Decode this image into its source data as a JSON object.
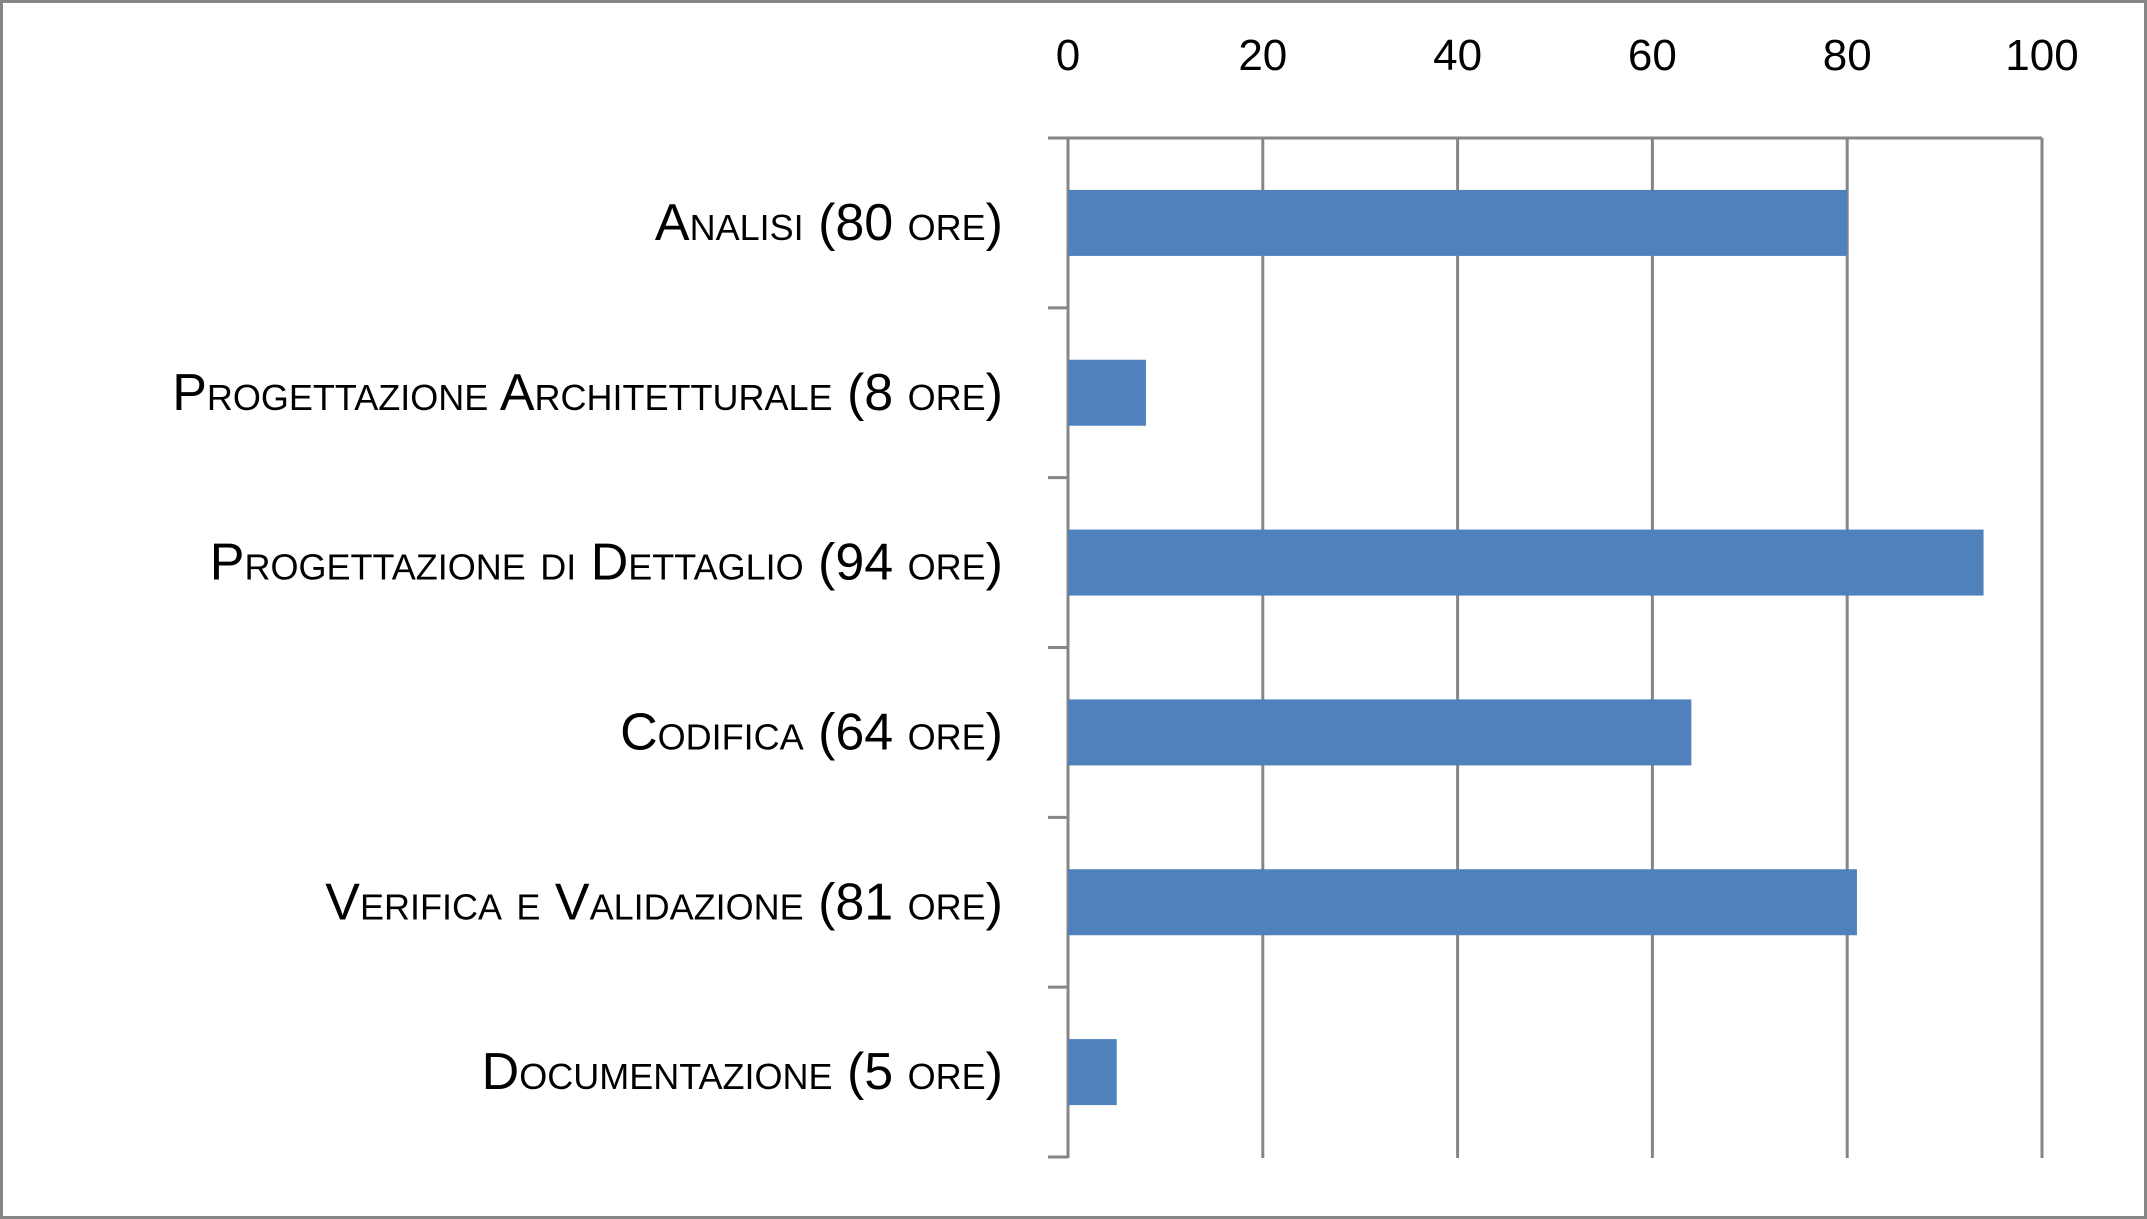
{
  "chart_data": {
    "type": "bar",
    "orientation": "horizontal",
    "categories": [
      "Analisi (80 ore)",
      "Progettazione Architetturale (8 ore)",
      "Progettazione di Dettaglio (94 ore)",
      "Codifica (64 ore)",
      "Verifica e Validazione (81 ore)",
      "Documentazione (5 ore)"
    ],
    "values": [
      80,
      8,
      94,
      64,
      81,
      5
    ],
    "xlim": [
      0,
      100
    ],
    "xticks": [
      0,
      20,
      40,
      60,
      80,
      100
    ],
    "x_axis_position": "top",
    "grid": true,
    "legend": "none",
    "title": "",
    "xlabel": "",
    "ylabel": "",
    "colors": {
      "bar": "#4F81BD",
      "grid": "#868686",
      "frame": "#868686",
      "background": "#FFFFFF",
      "text": "#000000"
    }
  }
}
